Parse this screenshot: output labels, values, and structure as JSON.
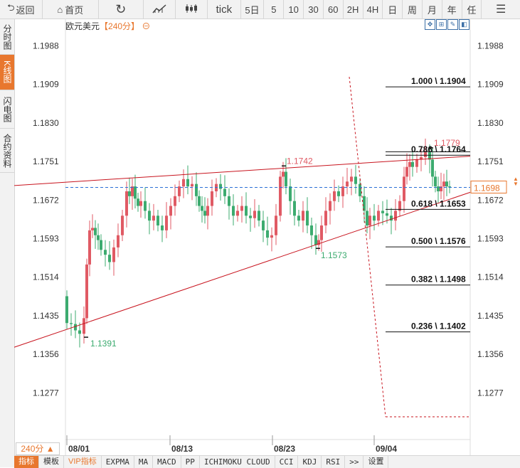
{
  "toolbar": {
    "back": "返回",
    "home": "首页",
    "items": [
      "tick",
      "5日",
      "5",
      "10",
      "30",
      "60",
      "2H",
      "4H",
      "日",
      "周",
      "月",
      "年",
      "任"
    ]
  },
  "sidebar": [
    "分时图",
    "K线图",
    "闪电图",
    "合约资料"
  ],
  "chart_title": {
    "symbol": "欧元美元",
    "period": "【240分】",
    "toggle": "⊖"
  },
  "period_box": "240分 ▲",
  "bottom_tabs": [
    "指标",
    "模板",
    "VIP指标",
    "EXPMA",
    "MA",
    "MACD",
    "PP",
    "ICHIMOKU CLOUD",
    "CCI",
    "KDJ",
    "RSI",
    ">>",
    "设置"
  ],
  "colors": {
    "up": "#e05a64",
    "down": "#3cab6f",
    "trend": "#c8141e",
    "accent": "#e8772e",
    "hline": "#2a6ed6"
  },
  "chart_data": {
    "type": "candlestick",
    "title": "欧元美元",
    "y_ticks": [
      "1.1988",
      "1.1909",
      "1.1830",
      "1.1751",
      "1.1672",
      "1.1593",
      "1.1514",
      "1.1435",
      "1.1356",
      "1.1277"
    ],
    "x_ticks": [
      "08/01",
      "08/13",
      "08/23",
      "09/04"
    ],
    "current_price": "1.1698",
    "annotations": [
      {
        "text": "1.1742",
        "color": "#e05a64"
      },
      {
        "text": "1.1573",
        "color": "#3cab6f"
      },
      {
        "text": "1.1391",
        "color": "#3cab6f"
      },
      {
        "text": "1.1779",
        "color": "#e05a64"
      }
    ],
    "fib_levels": [
      {
        "label": "1.000 \\ 1.1904",
        "price": 1.1904
      },
      {
        "label": "0.786 \\ 1.1764",
        "price": 1.1764
      },
      {
        "label": "0.618 \\ 1.1653",
        "price": 1.1653
      },
      {
        "label": "0.500 \\ 1.1576",
        "price": 1.1576
      },
      {
        "label": "0.382 \\ 1.1498",
        "price": 1.1498
      },
      {
        "label": "0.236 \\ 1.1402",
        "price": 1.1402
      }
    ],
    "ylim": [
      1.1225,
      1.2015
    ]
  }
}
